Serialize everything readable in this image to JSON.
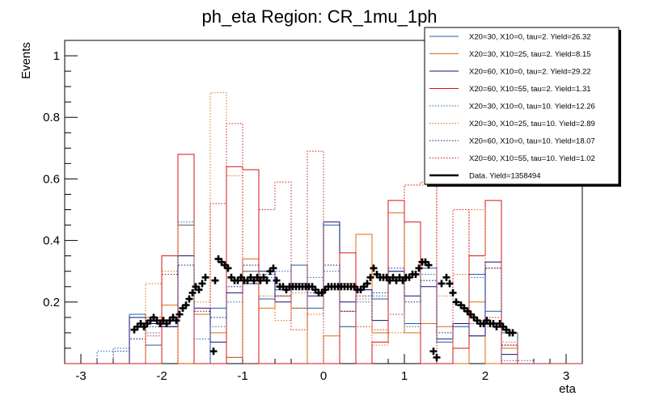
{
  "chart_data": {
    "type": "histogram",
    "title": "ph_eta Region: CR_1mu_1ph",
    "xlabel": "eta",
    "ylabel": "Events",
    "xlim": [
      -3.2,
      3.2
    ],
    "ylim": [
      0,
      1.05
    ],
    "xticks": [
      -3,
      -2,
      -1,
      0,
      1,
      2,
      3
    ],
    "yticks": [
      0.2,
      0.4,
      0.6,
      0.8,
      1
    ],
    "bin_edges": [
      -3.2,
      -3.0,
      -2.8,
      -2.6,
      -2.4,
      -2.2,
      -2.0,
      -1.8,
      -1.6,
      -1.4,
      -1.2,
      -1.0,
      -0.8,
      -0.6,
      -0.4,
      -0.2,
      0.0,
      0.2,
      0.4,
      0.6,
      0.8,
      1.0,
      1.2,
      1.4,
      1.6,
      1.8,
      2.0,
      2.2,
      2.4,
      2.6,
      2.8,
      3.0,
      3.2
    ],
    "series": [
      {
        "name": "X20=30, X10=0, tau=2. Yield=26.32",
        "color": "#1f5fa8",
        "dash": "solid",
        "values": [
          0,
          0,
          0,
          0,
          0.16,
          0.06,
          0.12,
          0.45,
          0,
          0.18,
          0.02,
          0.3,
          0.21,
          0.24,
          0.32,
          0.18,
          0.45,
          0.12,
          0.24,
          0.21,
          0.3,
          0.13,
          0.31,
          0.07,
          0.12,
          0.29,
          0.17,
          0.1,
          0,
          0,
          0,
          0
        ]
      },
      {
        "name": "X20=30, X10=25, tau=2. Yield=8.15",
        "color": "#e06c0e",
        "dash": "solid",
        "values": [
          0,
          0,
          0,
          0,
          0,
          0.15,
          0.19,
          0,
          0.16,
          0.1,
          0.02,
          0.34,
          0.18,
          0.22,
          0.18,
          0,
          0.09,
          0.26,
          0.42,
          0.1,
          0.49,
          0.1,
          0.13,
          0.12,
          0,
          0.2,
          0,
          0.05,
          0,
          0,
          0,
          0
        ]
      },
      {
        "name": "X20=60, X10=0, tau=2. Yield=29.22",
        "color": "#12127a",
        "dash": "solid",
        "values": [
          0,
          0,
          0,
          0,
          0.15,
          0.13,
          0.12,
          0.35,
          0.18,
          0.07,
          0.23,
          0.26,
          0.3,
          0.2,
          0.26,
          0.22,
          0.46,
          0.2,
          0.24,
          0.14,
          0.3,
          0.22,
          0.25,
          0.08,
          0.13,
          0.09,
          0.33,
          0.03,
          0,
          0,
          0,
          0
        ]
      },
      {
        "name": "X20=60, X10=55, tau=2. Yield=1.31",
        "color": "#d41515",
        "dash": "solid",
        "values": [
          0,
          0,
          0,
          0,
          0,
          0,
          0.35,
          0.68,
          0,
          0,
          0.64,
          0.63,
          0,
          0,
          0,
          0,
          0,
          0.36,
          0,
          0.07,
          0.53,
          0.46,
          0,
          0,
          0.05,
          0.35,
          0.53,
          0,
          0,
          0,
          0,
          0
        ]
      },
      {
        "name": "X20=30, X10=0, tau=10. Yield=12.26",
        "color": "#1f5fa8",
        "dash": "dotted",
        "values": [
          0,
          0,
          0.04,
          0.05,
          0.08,
          0.1,
          0.12,
          0.46,
          0.08,
          0.12,
          0.2,
          0.26,
          0.28,
          0.3,
          0.18,
          0.28,
          0.3,
          0.12,
          0.2,
          0.22,
          0.3,
          0.12,
          0.29,
          0.08,
          0.12,
          0.28,
          0.12,
          0.01,
          0.01,
          0,
          0,
          0
        ]
      },
      {
        "name": "X20=30, X10=25, tau=10. Yield=2.89",
        "color": "#e06c0e",
        "dash": "dotted",
        "values": [
          0,
          0,
          0,
          0,
          0,
          0.26,
          0.3,
          0.45,
          0.2,
          0.88,
          0.61,
          0.3,
          0.22,
          0.14,
          0.23,
          0.16,
          0.24,
          0.17,
          0.21,
          0.06,
          0.1,
          0.58,
          0.58,
          0.22,
          0.29,
          0.5,
          0.31,
          0.07,
          0,
          0,
          0,
          0
        ]
      },
      {
        "name": "X20=60, X10=0, tau=10. Yield=18.07",
        "color": "#12127a",
        "dash": "dotted",
        "values": [
          0,
          0,
          0,
          0.04,
          0.08,
          0.12,
          0.12,
          0.32,
          0.17,
          0.15,
          0.25,
          0.32,
          0.29,
          0.22,
          0.26,
          0.23,
          0.32,
          0.17,
          0.22,
          0.23,
          0.31,
          0.2,
          0.27,
          0.1,
          0.13,
          0.09,
          0.31,
          0.06,
          0,
          0,
          0,
          0
        ]
      },
      {
        "name": "X20=60, X10=55, tau=10. Yield=1.02",
        "color": "#d41515",
        "dash": "dotted",
        "values": [
          0,
          0,
          0,
          0,
          0,
          0.09,
          0.29,
          0,
          0.18,
          0.52,
          0.78,
          0,
          0.5,
          0.59,
          0.11,
          0.69,
          0,
          0.17,
          0.12,
          0.11,
          0.16,
          0.58,
          0.59,
          0,
          0.5,
          0.13,
          0.15,
          0.06,
          0,
          0,
          0,
          0
        ]
      }
    ],
    "data_series": {
      "name": "Data. Yield=1358494",
      "color": "#000000",
      "points": [
        [
          -2.34,
          0.11
        ],
        [
          -2.3,
          0.12
        ],
        [
          -2.26,
          0.13
        ],
        [
          -2.22,
          0.12
        ],
        [
          -2.18,
          0.13
        ],
        [
          -2.14,
          0.14
        ],
        [
          -2.1,
          0.15
        ],
        [
          -2.06,
          0.14
        ],
        [
          -2.02,
          0.13
        ],
        [
          -1.98,
          0.14
        ],
        [
          -1.94,
          0.13
        ],
        [
          -1.9,
          0.14
        ],
        [
          -1.86,
          0.15
        ],
        [
          -1.82,
          0.14
        ],
        [
          -1.78,
          0.16
        ],
        [
          -1.74,
          0.18
        ],
        [
          -1.7,
          0.19
        ],
        [
          -1.66,
          0.21
        ],
        [
          -1.62,
          0.23
        ],
        [
          -1.58,
          0.25
        ],
        [
          -1.54,
          0.24
        ],
        [
          -1.5,
          0.26
        ],
        [
          -1.46,
          0.28
        ],
        [
          -1.36,
          0.04
        ],
        [
          -1.34,
          0.27
        ],
        [
          -1.3,
          0.34
        ],
        [
          -1.26,
          0.33
        ],
        [
          -1.22,
          0.32
        ],
        [
          -1.18,
          0.31
        ],
        [
          -1.14,
          0.28
        ],
        [
          -1.1,
          0.27
        ],
        [
          -1.06,
          0.27
        ],
        [
          -1.02,
          0.28
        ],
        [
          -0.98,
          0.27
        ],
        [
          -0.94,
          0.27
        ],
        [
          -0.9,
          0.28
        ],
        [
          -0.86,
          0.27
        ],
        [
          -0.82,
          0.28
        ],
        [
          -0.78,
          0.27
        ],
        [
          -0.74,
          0.28
        ],
        [
          -0.7,
          0.27
        ],
        [
          -0.66,
          0.3
        ],
        [
          -0.62,
          0.31
        ],
        [
          -0.58,
          0.27
        ],
        [
          -0.54,
          0.25
        ],
        [
          -0.5,
          0.25
        ],
        [
          -0.46,
          0.24
        ],
        [
          -0.42,
          0.25
        ],
        [
          -0.38,
          0.25
        ],
        [
          -0.34,
          0.25
        ],
        [
          -0.3,
          0.25
        ],
        [
          -0.26,
          0.25
        ],
        [
          -0.22,
          0.25
        ],
        [
          -0.18,
          0.25
        ],
        [
          -0.14,
          0.25
        ],
        [
          -0.1,
          0.24
        ],
        [
          -0.06,
          0.23
        ],
        [
          -0.02,
          0.23
        ],
        [
          0.02,
          0.24
        ],
        [
          0.06,
          0.25
        ],
        [
          0.1,
          0.25
        ],
        [
          0.14,
          0.25
        ],
        [
          0.18,
          0.25
        ],
        [
          0.22,
          0.25
        ],
        [
          0.26,
          0.25
        ],
        [
          0.3,
          0.25
        ],
        [
          0.34,
          0.25
        ],
        [
          0.38,
          0.25
        ],
        [
          0.42,
          0.24
        ],
        [
          0.46,
          0.24
        ],
        [
          0.5,
          0.25
        ],
        [
          0.54,
          0.26
        ],
        [
          0.58,
          0.28
        ],
        [
          0.62,
          0.31
        ],
        [
          0.66,
          0.29
        ],
        [
          0.7,
          0.28
        ],
        [
          0.74,
          0.28
        ],
        [
          0.78,
          0.28
        ],
        [
          0.82,
          0.27
        ],
        [
          0.86,
          0.28
        ],
        [
          0.9,
          0.27
        ],
        [
          0.94,
          0.28
        ],
        [
          0.98,
          0.27
        ],
        [
          1.02,
          0.28
        ],
        [
          1.06,
          0.28
        ],
        [
          1.1,
          0.29
        ],
        [
          1.14,
          0.29
        ],
        [
          1.18,
          0.31
        ],
        [
          1.22,
          0.33
        ],
        [
          1.26,
          0.33
        ],
        [
          1.3,
          0.32
        ],
        [
          1.36,
          0.04
        ],
        [
          1.4,
          0.02
        ],
        [
          1.46,
          0.26
        ],
        [
          1.52,
          0.28
        ],
        [
          1.56,
          0.26
        ],
        [
          1.6,
          0.23
        ],
        [
          1.64,
          0.2
        ],
        [
          1.7,
          0.19
        ],
        [
          1.74,
          0.18
        ],
        [
          1.78,
          0.17
        ],
        [
          1.82,
          0.16
        ],
        [
          1.86,
          0.15
        ],
        [
          1.9,
          0.14
        ],
        [
          1.94,
          0.13
        ],
        [
          1.98,
          0.13
        ],
        [
          2.02,
          0.14
        ],
        [
          2.06,
          0.13
        ],
        [
          2.1,
          0.13
        ],
        [
          2.14,
          0.12
        ],
        [
          2.18,
          0.13
        ],
        [
          2.22,
          0.12
        ],
        [
          2.26,
          0.11
        ],
        [
          2.3,
          0.1
        ],
        [
          2.34,
          0.1
        ]
      ]
    }
  }
}
